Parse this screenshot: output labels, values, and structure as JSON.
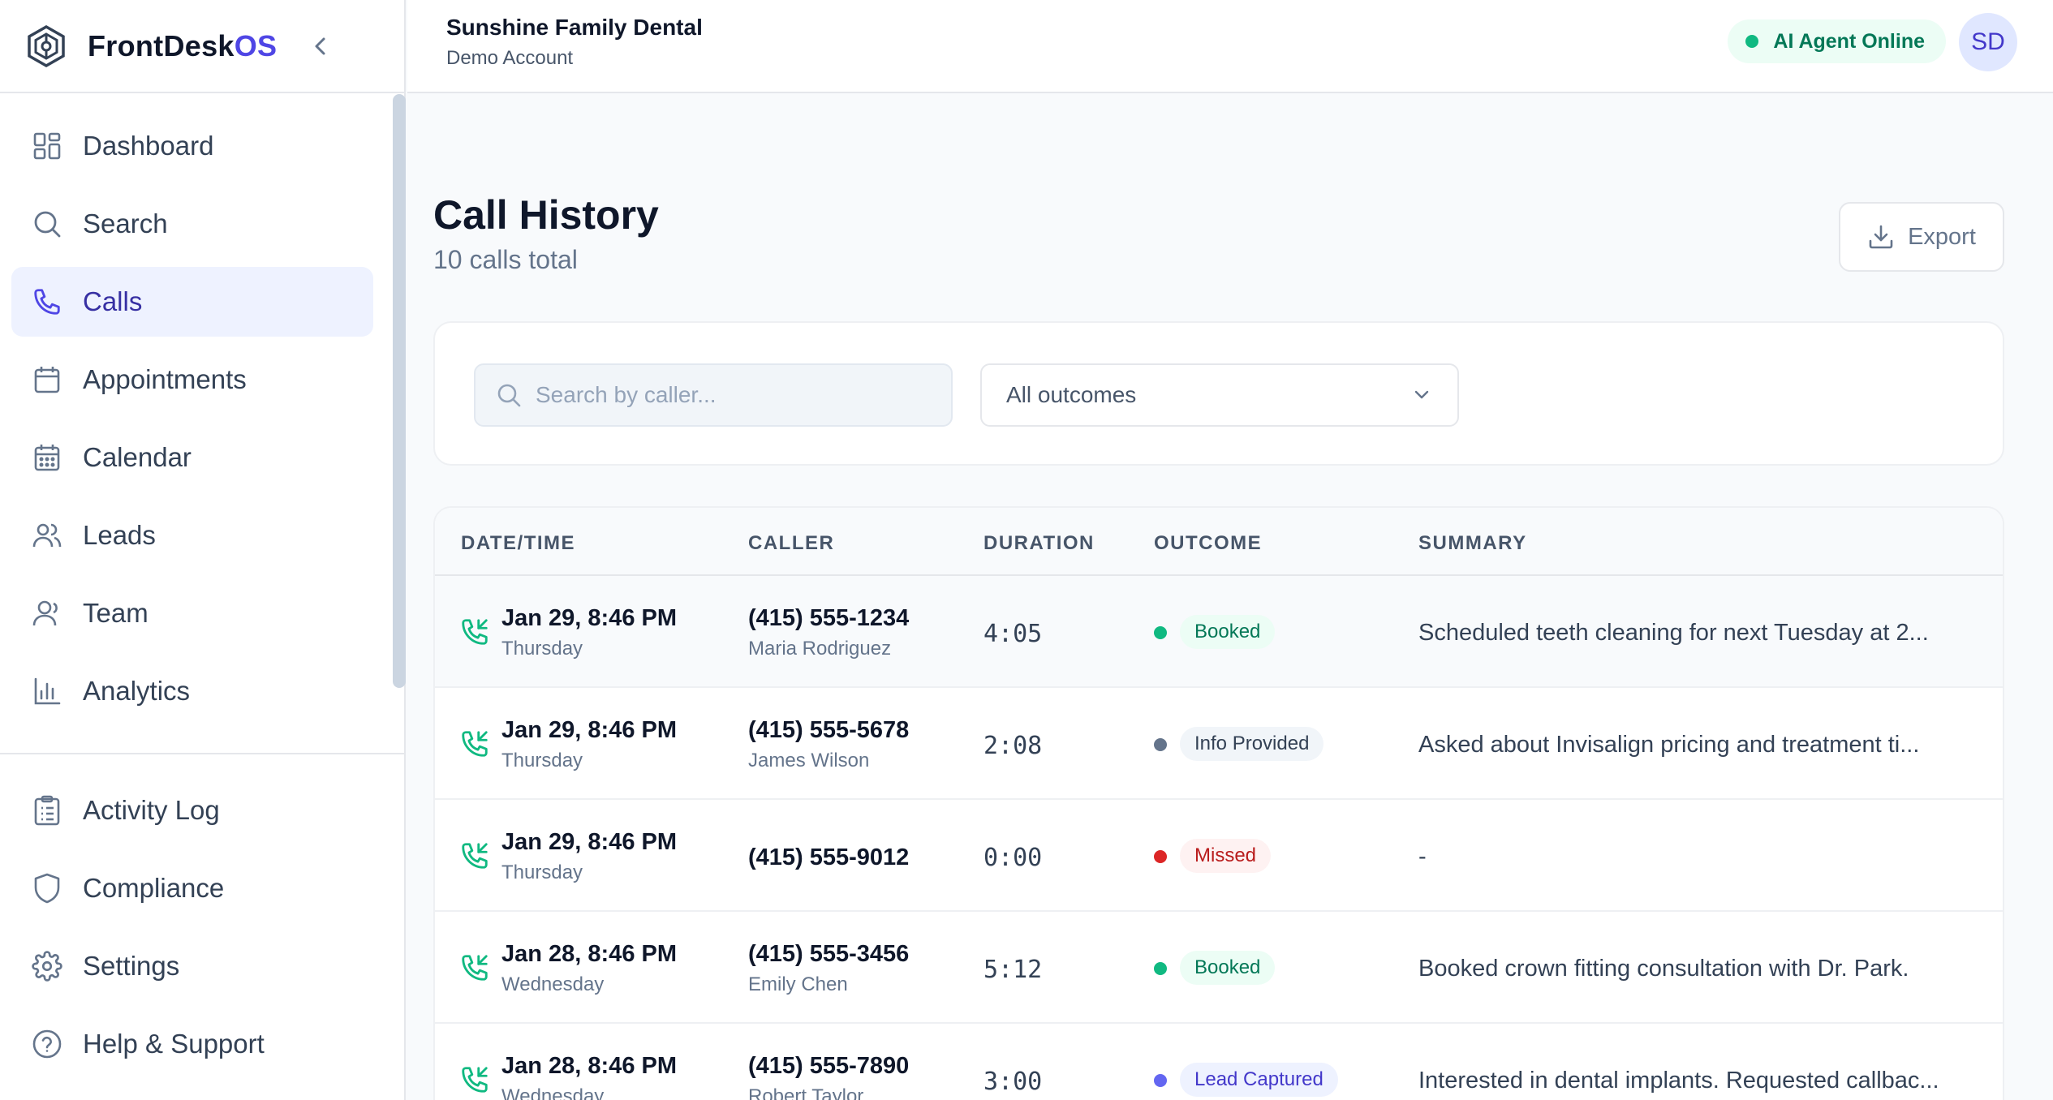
{
  "brand": {
    "name_main": "FrontDesk",
    "name_accent": "OS",
    "accent_color": "#4f46e5"
  },
  "nav": {
    "items": [
      {
        "label": "Dashboard",
        "icon": "grid-icon"
      },
      {
        "label": "Search",
        "icon": "search-icon"
      },
      {
        "label": "Calls",
        "icon": "phone-icon",
        "active": true
      },
      {
        "label": "Appointments",
        "icon": "calendar-icon"
      },
      {
        "label": "Calendar",
        "icon": "calendar-grid-icon"
      },
      {
        "label": "Leads",
        "icon": "users-icon"
      },
      {
        "label": "Team",
        "icon": "user-group-icon"
      },
      {
        "label": "Analytics",
        "icon": "bar-chart-icon"
      }
    ],
    "secondary": [
      {
        "label": "Activity Log",
        "icon": "clipboard-icon"
      },
      {
        "label": "Compliance",
        "icon": "shield-icon"
      },
      {
        "label": "Settings",
        "icon": "gear-icon"
      },
      {
        "label": "Help & Support",
        "icon": "help-circle-icon"
      }
    ]
  },
  "header": {
    "practice_name": "Sunshine Family Dental",
    "account_type": "Demo Account",
    "agent_status": "AI Agent Online",
    "avatar_initials": "SD"
  },
  "page": {
    "title": "Call History",
    "subtitle": "10 calls total",
    "export_label": "Export"
  },
  "filters": {
    "search_placeholder": "Search by caller...",
    "outcome_selected": "All outcomes"
  },
  "table": {
    "columns": [
      "DATE/TIME",
      "CALLER",
      "DURATION",
      "OUTCOME",
      "SUMMARY"
    ],
    "rows": [
      {
        "datetime": "Jan 29, 8:46 PM",
        "day": "Thursday",
        "phone": "(415) 555-1234",
        "name": "Maria Rodriguez",
        "duration": "4:05",
        "outcome": "Booked",
        "outcome_color": "#10b981",
        "badge_bg": "#ecfdf5",
        "badge_fg": "#047857",
        "summary": "Scheduled teeth cleaning for next Tuesday at 2..."
      },
      {
        "datetime": "Jan 29, 8:46 PM",
        "day": "Thursday",
        "phone": "(415) 555-5678",
        "name": "James Wilson",
        "duration": "2:08",
        "outcome": "Info Provided",
        "outcome_color": "#64748b",
        "badge_bg": "#f1f5f9",
        "badge_fg": "#334155",
        "summary": "Asked about Invisalign pricing and treatment ti..."
      },
      {
        "datetime": "Jan 29, 8:46 PM",
        "day": "Thursday",
        "phone": "(415) 555-9012",
        "name": "",
        "duration": "0:00",
        "outcome": "Missed",
        "outcome_color": "#dc2626",
        "badge_bg": "#fef2f2",
        "badge_fg": "#b91c1c",
        "summary": "-"
      },
      {
        "datetime": "Jan 28, 8:46 PM",
        "day": "Wednesday",
        "phone": "(415) 555-3456",
        "name": "Emily Chen",
        "duration": "5:12",
        "outcome": "Booked",
        "outcome_color": "#10b981",
        "badge_bg": "#ecfdf5",
        "badge_fg": "#047857",
        "summary": "Booked crown fitting consultation with Dr. Park."
      },
      {
        "datetime": "Jan 28, 8:46 PM",
        "day": "Wednesday",
        "phone": "(415) 555-7890",
        "name": "Robert Taylor",
        "duration": "3:00",
        "outcome": "Lead Captured",
        "outcome_color": "#6366f1",
        "badge_bg": "#eef2ff",
        "badge_fg": "#4338ca",
        "summary": "Interested in dental implants. Requested callbac..."
      }
    ]
  }
}
